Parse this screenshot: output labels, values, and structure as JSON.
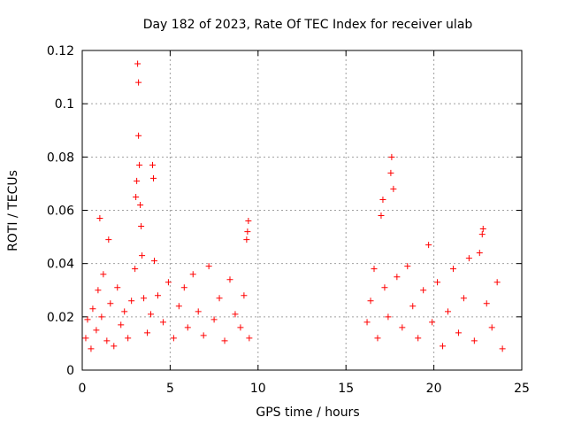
{
  "chart_data": {
    "type": "scatter",
    "title": "Day 182 of 2023, Rate Of TEC Index for receiver ulab",
    "xlabel": "GPS time / hours",
    "ylabel": "ROTI / TECUs",
    "xlim": [
      0,
      25
    ],
    "ylim": [
      0,
      0.12
    ],
    "x_ticks": [
      0,
      5,
      10,
      15,
      20,
      25
    ],
    "x_tick_labels": [
      "0",
      "5",
      "10",
      "15",
      "20",
      "25"
    ],
    "y_ticks": [
      0,
      0.02,
      0.04,
      0.06,
      0.08,
      0.1,
      0.12
    ],
    "y_tick_labels": [
      "0",
      "0.02",
      "0.04",
      "0.06",
      "0.08",
      "0.1",
      "0.12"
    ],
    "grid": true,
    "legend": "none",
    "marker": "+",
    "color": "#ff0000",
    "series": [
      {
        "points": [
          [
            0.2,
            0.012
          ],
          [
            0.3,
            0.019
          ],
          [
            0.5,
            0.008
          ],
          [
            0.6,
            0.023
          ],
          [
            0.8,
            0.015
          ],
          [
            0.9,
            0.03
          ],
          [
            1.0,
            0.057
          ],
          [
            1.1,
            0.02
          ],
          [
            1.2,
            0.036
          ],
          [
            1.4,
            0.011
          ],
          [
            1.5,
            0.049
          ],
          [
            1.6,
            0.025
          ],
          [
            1.8,
            0.009
          ],
          [
            2.0,
            0.031
          ],
          [
            2.2,
            0.017
          ],
          [
            2.4,
            0.022
          ],
          [
            2.6,
            0.012
          ],
          [
            2.8,
            0.026
          ],
          [
            3.0,
            0.038
          ],
          [
            3.05,
            0.065
          ],
          [
            3.1,
            0.071
          ],
          [
            3.15,
            0.115
          ],
          [
            3.2,
            0.108
          ],
          [
            3.2,
            0.088
          ],
          [
            3.25,
            0.077
          ],
          [
            3.3,
            0.062
          ],
          [
            3.35,
            0.054
          ],
          [
            3.4,
            0.043
          ],
          [
            3.5,
            0.027
          ],
          [
            3.7,
            0.014
          ],
          [
            3.9,
            0.021
          ],
          [
            4.0,
            0.077
          ],
          [
            4.05,
            0.072
          ],
          [
            4.1,
            0.041
          ],
          [
            4.3,
            0.028
          ],
          [
            4.6,
            0.018
          ],
          [
            4.9,
            0.033
          ],
          [
            5.2,
            0.012
          ],
          [
            5.5,
            0.024
          ],
          [
            5.8,
            0.031
          ],
          [
            6.0,
            0.016
          ],
          [
            6.3,
            0.036
          ],
          [
            6.6,
            0.022
          ],
          [
            6.9,
            0.013
          ],
          [
            7.2,
            0.039
          ],
          [
            7.5,
            0.019
          ],
          [
            7.8,
            0.027
          ],
          [
            8.1,
            0.011
          ],
          [
            8.4,
            0.034
          ],
          [
            8.7,
            0.021
          ],
          [
            9.0,
            0.016
          ],
          [
            9.2,
            0.028
          ],
          [
            9.35,
            0.049
          ],
          [
            9.4,
            0.052
          ],
          [
            9.45,
            0.056
          ],
          [
            9.5,
            0.012
          ],
          [
            16.2,
            0.018
          ],
          [
            16.4,
            0.026
          ],
          [
            16.6,
            0.038
          ],
          [
            16.8,
            0.012
          ],
          [
            17.0,
            0.058
          ],
          [
            17.1,
            0.064
          ],
          [
            17.2,
            0.031
          ],
          [
            17.4,
            0.02
          ],
          [
            17.55,
            0.074
          ],
          [
            17.6,
            0.08
          ],
          [
            17.7,
            0.068
          ],
          [
            17.9,
            0.035
          ],
          [
            18.2,
            0.016
          ],
          [
            18.5,
            0.039
          ],
          [
            18.8,
            0.024
          ],
          [
            19.1,
            0.012
          ],
          [
            19.4,
            0.03
          ],
          [
            19.7,
            0.047
          ],
          [
            19.9,
            0.018
          ],
          [
            20.2,
            0.033
          ],
          [
            20.5,
            0.009
          ],
          [
            20.8,
            0.022
          ],
          [
            21.1,
            0.038
          ],
          [
            21.4,
            0.014
          ],
          [
            21.7,
            0.027
          ],
          [
            22.0,
            0.042
          ],
          [
            22.3,
            0.011
          ],
          [
            22.6,
            0.044
          ],
          [
            22.75,
            0.051
          ],
          [
            22.8,
            0.053
          ],
          [
            23.0,
            0.025
          ],
          [
            23.3,
            0.016
          ],
          [
            23.6,
            0.033
          ],
          [
            23.9,
            0.008
          ]
        ]
      }
    ]
  }
}
